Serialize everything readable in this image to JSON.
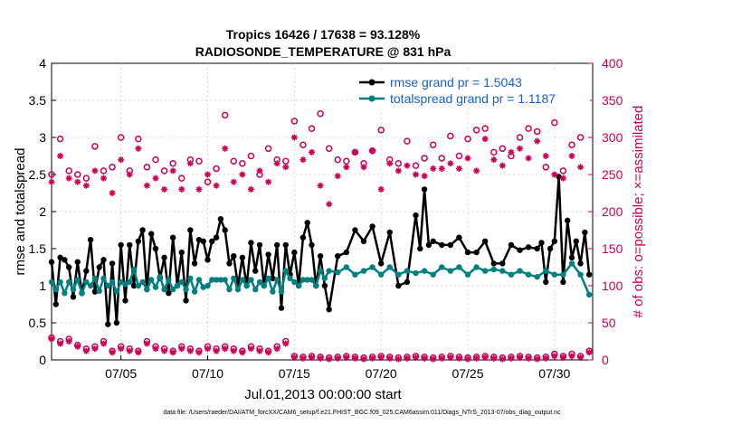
{
  "chart_data": {
    "type": "line",
    "title": "Tropics 16426 / 17638 = 93.128%",
    "subtitle": "RADIOSONDE_TEMPERATURE @ 831 hPa",
    "xlabel": "Jul.01,2013 00:00:00 start",
    "ylabel": "rmse and totalspread",
    "y2label": "# of obs: o=possible; ×=assimilated",
    "footnote": "data file: /Users/raeder/DAI/ATM_forcXX/CAM6_setup/f.e21.FHIST_BGC.f09_025.CAM6assim.011/Diags_NTrS_2013-07/obs_diag_output.nc",
    "xlim": [
      1.0,
      32.2
    ],
    "ylim": [
      0,
      4
    ],
    "y2lim": [
      0,
      400
    ],
    "xticks": [
      5,
      10,
      15,
      20,
      25,
      30
    ],
    "xtick_labels": [
      "07/05",
      "07/10",
      "07/15",
      "07/20",
      "07/25",
      "07/30"
    ],
    "yticks": [
      0,
      0.5,
      1,
      1.5,
      2,
      2.5,
      3,
      3.5,
      4
    ],
    "ytick_labels": [
      "0",
      "0.5",
      "1",
      "1.5",
      "2",
      "2.5",
      "3",
      "3.5",
      "4"
    ],
    "y2ticks": [
      0,
      50,
      100,
      150,
      200,
      250,
      300,
      350,
      400
    ],
    "y2tick_labels": [
      "0",
      "50",
      "100",
      "150",
      "200",
      "250",
      "300",
      "350",
      "400"
    ],
    "legend_position": "top-right",
    "series": [
      {
        "name": "rmse grand pr = 1.5043",
        "axis": "left",
        "color": "#000000",
        "x": [
          1.0,
          1.25,
          1.5,
          1.75,
          2.0,
          2.25,
          2.5,
          2.75,
          3.0,
          3.25,
          3.5,
          3.75,
          4.0,
          4.25,
          4.5,
          4.75,
          5.0,
          5.25,
          5.5,
          5.75,
          6.0,
          6.25,
          6.5,
          6.75,
          7.0,
          7.25,
          7.5,
          7.75,
          8.0,
          8.25,
          8.5,
          8.75,
          9.0,
          9.25,
          9.5,
          9.75,
          10.0,
          10.25,
          10.5,
          10.75,
          11.0,
          11.25,
          11.5,
          11.75,
          12.0,
          12.25,
          12.5,
          12.75,
          13.0,
          13.25,
          13.5,
          13.75,
          14.0,
          14.25,
          14.5,
          14.75,
          15.0,
          15.25,
          15.5,
          15.75,
          16.0,
          16.25,
          16.5,
          16.75,
          17.0,
          17.5,
          18.0,
          18.5,
          19.0,
          19.5,
          20.0,
          20.5,
          21.0,
          21.5,
          22.0,
          22.25,
          22.5,
          22.75,
          23.0,
          23.5,
          24.0,
          24.5,
          25.0,
          25.5,
          26.0,
          26.5,
          27.0,
          27.5,
          28.0,
          28.5,
          29.0,
          29.25,
          29.5,
          29.75,
          30.0,
          30.25,
          30.5,
          30.75,
          31.0,
          31.25,
          31.5,
          31.75,
          32.0
        ],
        "values": [
          1.32,
          0.75,
          1.38,
          1.35,
          1.25,
          0.85,
          1.32,
          0.9,
          1.2,
          1.62,
          0.92,
          1.25,
          1.35,
          0.48,
          1.3,
          0.5,
          1.55,
          0.8,
          1.55,
          1.0,
          1.6,
          1.75,
          0.95,
          1.7,
          1.5,
          1.1,
          1.38,
          0.9,
          1.65,
          1.0,
          1.45,
          0.8,
          1.75,
          1.3,
          1.62,
          1.6,
          1.35,
          1.6,
          1.65,
          1.9,
          1.75,
          1.3,
          1.4,
          1.0,
          1.38,
          1.0,
          1.58,
          1.2,
          1.55,
          1.0,
          1.42,
          1.1,
          1.55,
          0.7,
          1.55,
          1.15,
          1.45,
          1.0,
          1.65,
          1.85,
          1.55,
          1.0,
          1.4,
          1.0,
          0.68,
          1.4,
          1.45,
          1.75,
          1.6,
          1.8,
          1.3,
          1.72,
          1.0,
          1.05,
          1.95,
          1.5,
          2.3,
          1.55,
          1.6,
          1.55,
          1.55,
          1.65,
          1.45,
          1.45,
          1.6,
          1.3,
          1.3,
          1.55,
          1.48,
          1.52,
          1.5,
          1.58,
          1.05,
          1.5,
          1.6,
          2.47,
          1.05,
          1.88,
          1.38,
          1.6,
          1.3,
          1.72,
          1.15
        ]
      },
      {
        "name": "totalspread grand pr = 1.1187",
        "axis": "left",
        "color": "#008080",
        "x": [
          1.0,
          1.25,
          1.5,
          1.75,
          2.0,
          2.25,
          2.5,
          2.75,
          3.0,
          3.25,
          3.5,
          3.75,
          4.0,
          4.25,
          4.5,
          4.75,
          5.0,
          5.25,
          5.5,
          5.75,
          6.0,
          6.25,
          6.5,
          6.75,
          7.0,
          7.25,
          7.5,
          7.75,
          8.0,
          8.25,
          8.5,
          8.75,
          9.0,
          9.25,
          9.5,
          9.75,
          10.0,
          10.25,
          10.5,
          10.75,
          11.0,
          11.25,
          11.5,
          11.75,
          12.0,
          12.25,
          12.5,
          12.75,
          13.0,
          13.25,
          13.5,
          13.75,
          14.0,
          14.25,
          14.5,
          14.75,
          15.0,
          15.25,
          15.5,
          15.75,
          16.0,
          16.25,
          16.5,
          16.75,
          17.0,
          17.5,
          18.0,
          18.5,
          19.0,
          19.5,
          20.0,
          20.5,
          21.0,
          21.5,
          22.0,
          22.5,
          23.0,
          23.5,
          24.0,
          24.5,
          25.0,
          25.5,
          26.0,
          26.5,
          27.0,
          27.5,
          28.0,
          28.5,
          29.0,
          29.5,
          30.0,
          30.5,
          31.0,
          31.5,
          32.0
        ],
        "values": [
          1.05,
          0.95,
          1.05,
          0.9,
          1.05,
          0.95,
          1.08,
          0.9,
          1.05,
          1.0,
          1.1,
          0.93,
          1.1,
          1.0,
          1.05,
          0.92,
          1.05,
          1.02,
          1.05,
          1.22,
          1.0,
          1.05,
          0.95,
          1.08,
          0.98,
          1.12,
          0.95,
          1.08,
          0.95,
          1.0,
          1.05,
          0.95,
          1.1,
          0.92,
          1.08,
          0.98,
          1.0,
          1.08,
          1.08,
          1.08,
          1.08,
          0.95,
          1.1,
          0.95,
          1.08,
          1.0,
          1.08,
          0.95,
          1.05,
          1.0,
          1.1,
          0.92,
          1.08,
          0.92,
          1.2,
          1.1,
          1.05,
          1.0,
          1.08,
          1.08,
          1.08,
          1.0,
          1.2,
          1.1,
          1.2,
          1.18,
          1.25,
          1.15,
          1.2,
          1.25,
          1.15,
          1.25,
          1.15,
          1.2,
          1.17,
          1.2,
          1.15,
          1.25,
          1.2,
          1.25,
          1.15,
          1.25,
          1.2,
          1.22,
          1.2,
          1.15,
          1.2,
          1.15,
          1.12,
          1.2,
          1.15,
          1.15,
          1.3,
          1.15,
          0.88
        ]
      },
      {
        "name": "possible obs (o)",
        "axis": "right",
        "color": "#cc0055",
        "x": [
          1.0,
          1.5,
          2.0,
          2.5,
          3.0,
          3.5,
          4.0,
          4.5,
          5.0,
          5.5,
          6.0,
          6.5,
          7.0,
          7.5,
          8.0,
          8.5,
          9.0,
          9.5,
          10.0,
          10.5,
          11.0,
          11.5,
          12.0,
          12.5,
          13.0,
          13.5,
          14.0,
          14.5,
          15.0,
          15.5,
          16.0,
          16.5,
          17.0,
          17.5,
          18.0,
          18.5,
          19.0,
          19.5,
          20.0,
          20.5,
          21.0,
          21.5,
          22.0,
          22.5,
          23.0,
          23.5,
          24.0,
          24.5,
          25.0,
          25.5,
          26.0,
          26.5,
          27.0,
          27.5,
          28.0,
          28.5,
          29.0,
          29.5,
          30.0,
          30.5,
          31.0,
          31.5
        ],
        "values": [
          250,
          298,
          255,
          250,
          245,
          288,
          255,
          260,
          300,
          255,
          298,
          260,
          270,
          255,
          265,
          245,
          270,
          268,
          240,
          258,
          330,
          268,
          265,
          275,
          250,
          285,
          270,
          268,
          322,
          290,
          312,
          332,
          285,
          270,
          268,
          280,
          265,
          282,
          310,
          270,
          265,
          295,
          262,
          272,
          290,
          272,
          302,
          275,
          298,
          310,
          312,
          280,
          285,
          275,
          300,
          312,
          308,
          260,
          320,
          255,
          290,
          300
        ]
      },
      {
        "name": "assimilated obs (×)",
        "axis": "right",
        "color": "#cc0055",
        "x": [
          1.0,
          1.5,
          2.0,
          2.5,
          3.0,
          3.5,
          4.0,
          4.5,
          5.0,
          5.5,
          6.0,
          6.5,
          7.0,
          7.5,
          8.0,
          8.5,
          9.0,
          9.5,
          10.0,
          10.5,
          11.0,
          11.5,
          12.0,
          12.5,
          13.0,
          13.5,
          14.0,
          14.5,
          15.0,
          15.5,
          16.0,
          16.5,
          17.0,
          17.5,
          18.0,
          18.5,
          19.0,
          19.5,
          20.0,
          20.5,
          21.0,
          21.5,
          22.0,
          22.5,
          23.0,
          23.5,
          24.0,
          24.5,
          25.0,
          25.5,
          26.0,
          26.5,
          27.0,
          27.5,
          28.0,
          28.5,
          29.0,
          29.5,
          30.0,
          30.5,
          31.0,
          31.5
        ],
        "values": [
          240,
          275,
          245,
          240,
          235,
          255,
          245,
          225,
          270,
          250,
          285,
          235,
          245,
          230,
          255,
          230,
          265,
          230,
          250,
          235,
          285,
          240,
          250,
          230,
          255,
          240,
          265,
          260,
          300,
          270,
          280,
          235,
          210,
          248,
          260,
          280,
          260,
          282,
          230,
          265,
          255,
          262,
          250,
          248,
          258,
          258,
          265,
          258,
          272,
          255,
          298,
          270,
          262,
          280,
          285,
          272,
          295,
          275,
          250,
          245,
          275,
          260
        ]
      },
      {
        "name": "possible obs near zero",
        "axis": "right",
        "color": "#cc0055",
        "x": [
          1.0,
          1.5,
          2.0,
          2.5,
          3.0,
          3.5,
          4.0,
          4.5,
          5.0,
          5.5,
          6.0,
          6.5,
          7.0,
          7.5,
          8.0,
          8.5,
          9.0,
          9.5,
          10.0,
          10.5,
          11.0,
          11.5,
          12.0,
          12.5,
          13.0,
          13.5,
          14.0,
          14.5,
          15.0,
          15.5,
          16.0,
          16.5,
          17.0,
          17.5,
          18.0,
          18.5,
          19.0,
          19.5,
          20.0,
          20.5,
          21.0,
          21.5,
          22.0,
          22.5,
          23.0,
          23.5,
          24.0,
          24.5,
          25.0,
          25.5,
          26.0,
          26.5,
          27.0,
          27.5,
          28.0,
          28.5,
          29.0,
          29.5,
          30.0,
          30.5,
          31.0,
          31.5,
          32.0
        ],
        "values": [
          30,
          25,
          28,
          20,
          15,
          18,
          25,
          12,
          18,
          15,
          12,
          25,
          18,
          15,
          12,
          18,
          15,
          12,
          18,
          15,
          18,
          15,
          12,
          18,
          15,
          12,
          18,
          25,
          5,
          4,
          5,
          4,
          3,
          4,
          5,
          4,
          3,
          4,
          5,
          4,
          3,
          4,
          5,
          4,
          3,
          4,
          5,
          4,
          3,
          4,
          5,
          4,
          3,
          4,
          5,
          4,
          3,
          4,
          8,
          5,
          8,
          5,
          12
        ]
      },
      {
        "name": "assimilated obs near zero",
        "axis": "right",
        "color": "#cc0055",
        "x": [
          1.0,
          1.5,
          2.0,
          2.5,
          3.0,
          3.5,
          4.0,
          4.5,
          5.0,
          5.5,
          6.0,
          6.5,
          7.0,
          7.5,
          8.0,
          8.5,
          9.0,
          9.5,
          10.0,
          10.5,
          11.0,
          11.5,
          12.0,
          12.5,
          13.0,
          13.5,
          14.0,
          14.5,
          15.0,
          15.5,
          16.0,
          16.5,
          17.0,
          17.5,
          18.0,
          18.5,
          19.0,
          19.5,
          20.0,
          20.5,
          21.0,
          21.5,
          22.0,
          22.5,
          23.0,
          23.5,
          24.0,
          24.5,
          25.0,
          25.5,
          26.0,
          26.5,
          27.0,
          27.5,
          28.0,
          28.5,
          29.0,
          29.5,
          30.0,
          30.5,
          31.0,
          31.5,
          32.0
        ],
        "values": [
          28,
          22,
          25,
          18,
          12,
          15,
          22,
          10,
          15,
          12,
          10,
          22,
          15,
          12,
          10,
          15,
          12,
          10,
          15,
          12,
          15,
          12,
          10,
          15,
          12,
          10,
          15,
          22,
          3,
          2,
          3,
          2,
          1,
          2,
          3,
          2,
          1,
          2,
          3,
          2,
          1,
          2,
          3,
          2,
          1,
          2,
          3,
          2,
          1,
          2,
          3,
          2,
          1,
          2,
          3,
          2,
          1,
          2,
          5,
          3,
          5,
          3,
          10
        ]
      }
    ]
  }
}
